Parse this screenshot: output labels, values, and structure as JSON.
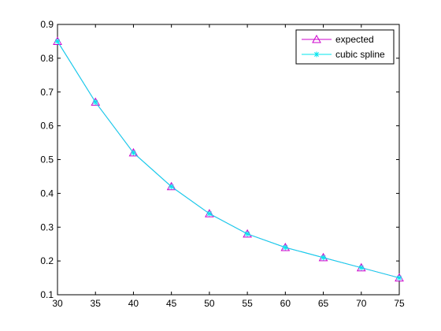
{
  "chart_data": {
    "type": "line",
    "title": "",
    "xlabel": "",
    "ylabel": "",
    "xlim": [
      30,
      75
    ],
    "ylim": [
      0.1,
      0.9
    ],
    "x_ticks": [
      30,
      35,
      40,
      45,
      50,
      55,
      60,
      65,
      70,
      75
    ],
    "x_tick_labels": [
      "30",
      "35",
      "40",
      "45",
      "50",
      "55",
      "60",
      "65",
      "70",
      "75"
    ],
    "y_ticks": [
      0.1,
      0.2,
      0.3,
      0.4,
      0.5,
      0.6,
      0.7,
      0.8,
      0.9
    ],
    "y_tick_labels": [
      "0.1",
      "0.2",
      "0.3",
      "0.4",
      "0.5",
      "0.6",
      "0.7",
      "0.8",
      "0.9"
    ],
    "grid": false,
    "legend_position": "top-right",
    "x": [
      30,
      35,
      40,
      45,
      50,
      55,
      60,
      65,
      70,
      75
    ],
    "series": [
      {
        "name": "expected",
        "color": "#cc00cc",
        "marker": "triangle",
        "values": [
          0.85,
          0.67,
          0.52,
          0.42,
          0.34,
          0.28,
          0.24,
          0.21,
          0.18,
          0.15
        ]
      },
      {
        "name": "cubic spline",
        "color": "#00e5ee",
        "marker": "star",
        "values": [
          0.85,
          0.67,
          0.52,
          0.42,
          0.34,
          0.28,
          0.24,
          0.21,
          0.18,
          0.15
        ]
      }
    ]
  }
}
